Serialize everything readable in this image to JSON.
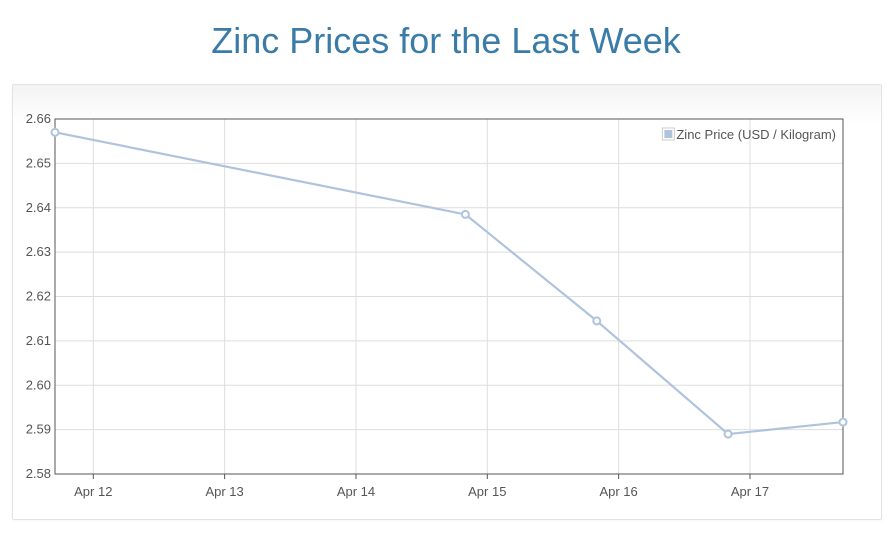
{
  "page": {
    "title": "Zinc Prices for the Last Week"
  },
  "colors": {
    "title": "#3a7ca8",
    "series_line": "#afc4dc",
    "grid": "#dedede",
    "axis": "#555555"
  },
  "chart_data": {
    "type": "line",
    "title": "Zinc Prices for the Last Week",
    "xlabel": "",
    "ylabel": "",
    "x_tick_labels": [
      "Apr 12",
      "Apr 13",
      "Apr 14",
      "Apr 15",
      "Apr 16",
      "Apr 17"
    ],
    "x_tick_dates": [
      "2023-04-12",
      "2023-04-13",
      "2023-04-14",
      "2023-04-15",
      "2023-04-16",
      "2023-04-17"
    ],
    "xlim": [
      "2023-04-11 17:00",
      "2023-04-17 17:00"
    ],
    "ylim": [
      2.58,
      2.66
    ],
    "y_ticks": [
      "2.58",
      "2.59",
      "2.60",
      "2.61",
      "2.62",
      "2.63",
      "2.64",
      "2.65",
      "2.66"
    ],
    "grid": true,
    "legend_position": "top-right",
    "series": [
      {
        "name": "Zinc Price (USD / Kilogram)",
        "x": [
          "2023-04-11 17:00",
          "2023-04-14 20:00",
          "2023-04-15 20:00",
          "2023-04-16 20:00",
          "2023-04-17 17:00"
        ],
        "y": [
          2.657,
          2.6385,
          2.6145,
          2.589,
          2.5917
        ]
      }
    ]
  }
}
